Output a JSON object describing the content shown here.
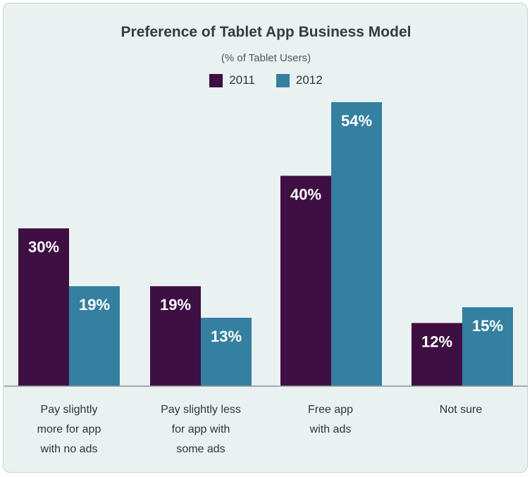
{
  "chart_data": {
    "type": "bar",
    "title": "Preference of Tablet App Business Model",
    "subtitle": "(% of Tablet Users)",
    "categories": [
      "Pay slightly\nmore for app\nwith no ads",
      "Pay slightly less\nfor app with\nsome ads",
      "Free app\nwith ads",
      "Not sure"
    ],
    "series": [
      {
        "name": "2011",
        "color": "#3e0f43",
        "values": [
          30,
          19,
          40,
          12
        ],
        "labels": [
          "30%",
          "19%",
          "40%",
          "12%"
        ]
      },
      {
        "name": "2012",
        "color": "#357fa0",
        "values": [
          19,
          13,
          54,
          15
        ],
        "labels": [
          "19%",
          "13%",
          "54%",
          "15%"
        ]
      }
    ],
    "ylim": [
      0,
      54
    ],
    "grid": false,
    "legend_position": "top-center"
  }
}
